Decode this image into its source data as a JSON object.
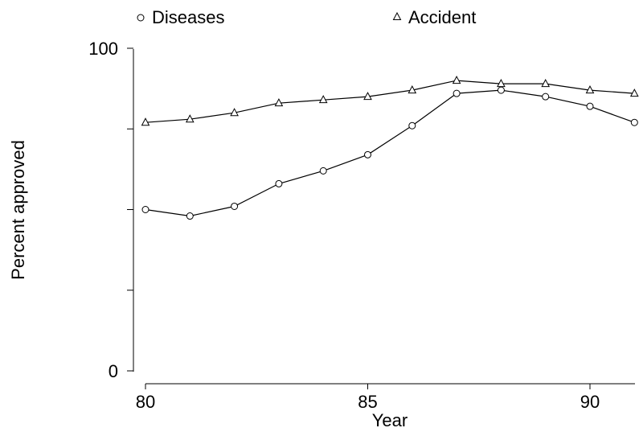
{
  "chart_data": {
    "type": "line",
    "x": [
      80,
      81,
      82,
      83,
      84,
      85,
      86,
      87,
      88,
      89,
      90,
      91
    ],
    "series": [
      {
        "name": "Diseases",
        "marker": "circle",
        "values": [
          50,
          48,
          51,
          58,
          62,
          67,
          76,
          86,
          87,
          85,
          82,
          77
        ]
      },
      {
        "name": "Accident",
        "marker": "triangle",
        "values": [
          77,
          78,
          80,
          83,
          84,
          85,
          87,
          90,
          89,
          89,
          87,
          86
        ]
      }
    ],
    "xlabel": "Year",
    "ylabel": "Percent approved",
    "xlim": [
      80,
      91
    ],
    "ylim": [
      0,
      100
    ],
    "x_ticks": [
      80,
      85,
      90
    ],
    "y_ticks": [
      0,
      25,
      50,
      75,
      100
    ],
    "y_tick_labels": [
      "0",
      "",
      "",
      "",
      "100"
    ],
    "legend_position": "top",
    "grid": false,
    "line_color": "#000000"
  }
}
